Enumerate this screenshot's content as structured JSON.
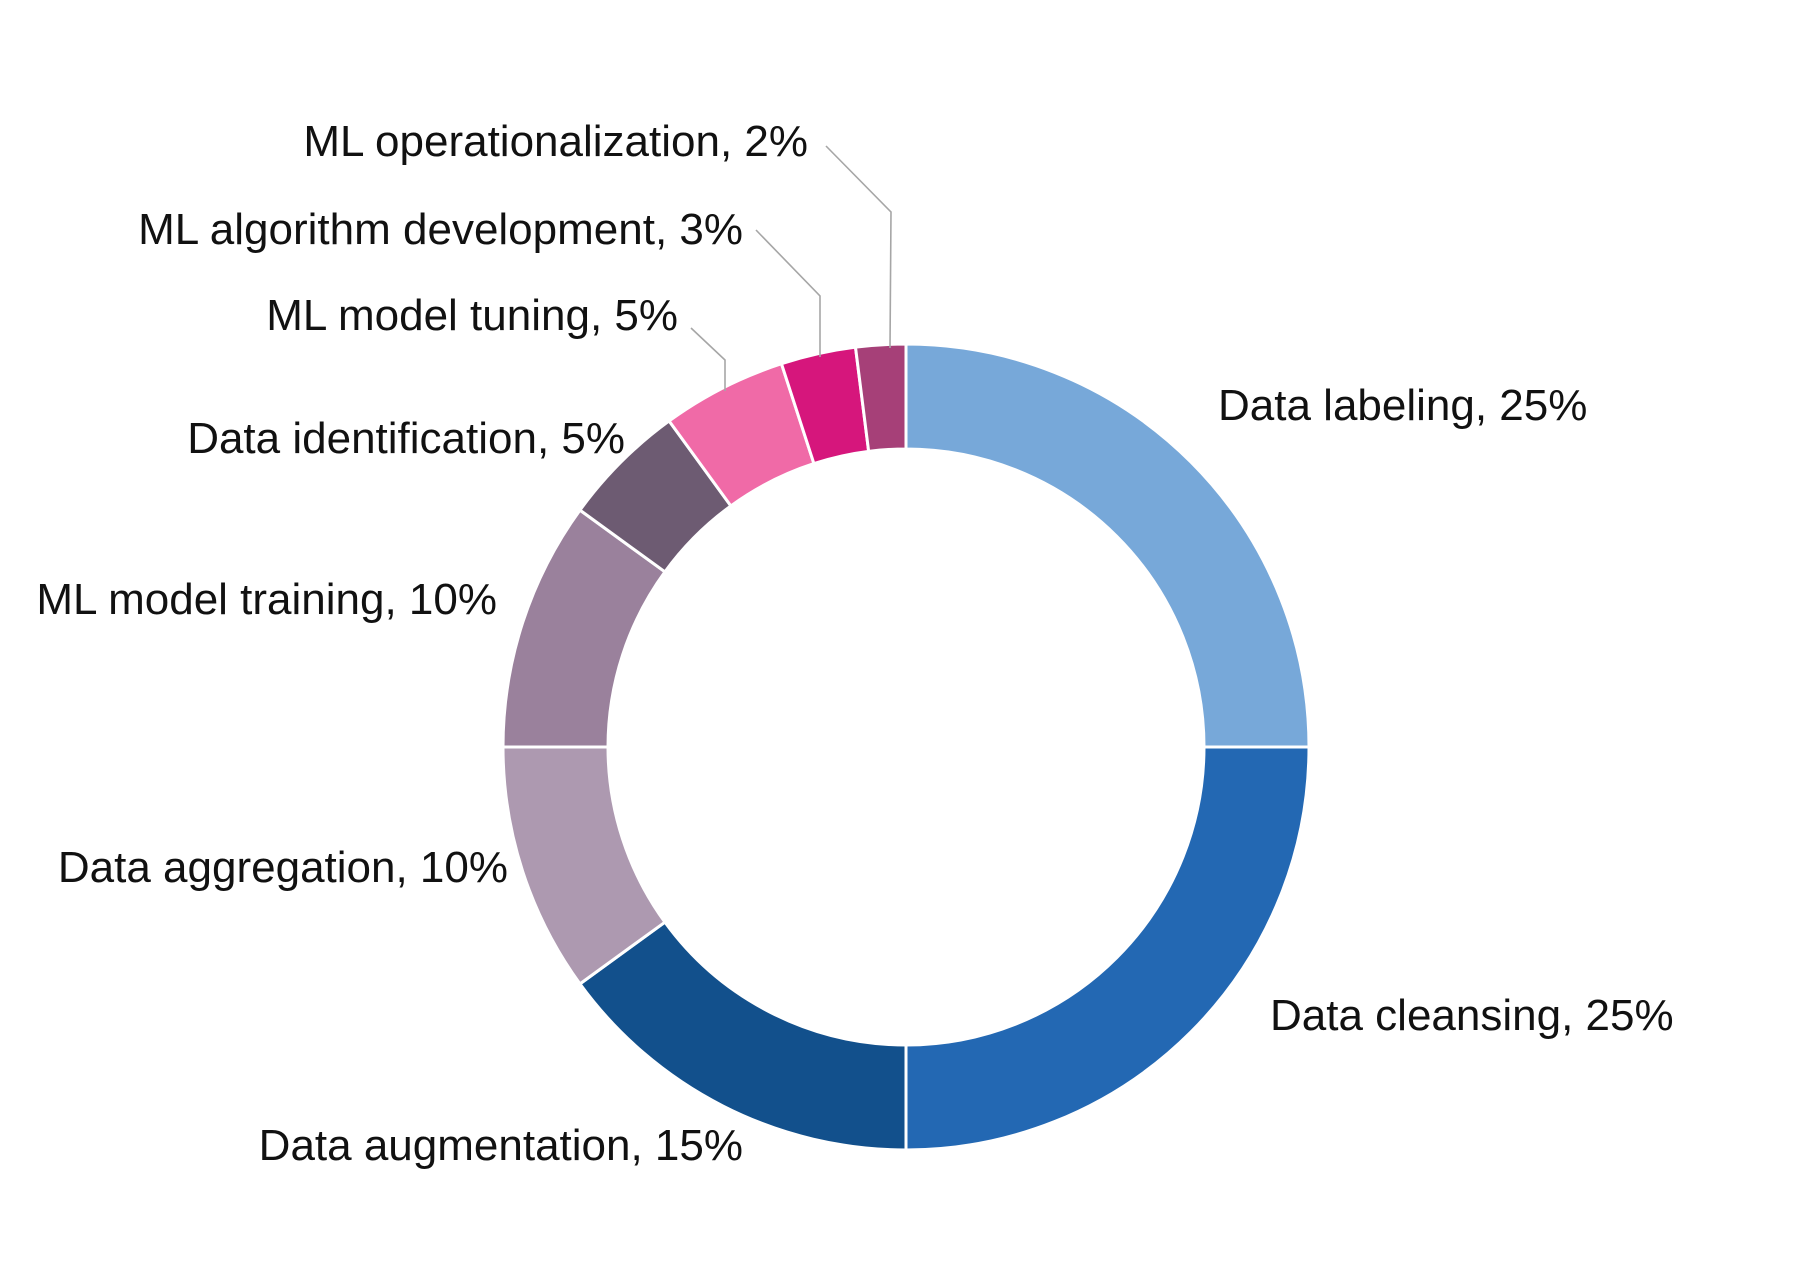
{
  "chart_data": {
    "type": "pie",
    "donut": true,
    "title": "",
    "categories": [
      "Data labeling",
      "Data cleansing",
      "Data augmentation",
      "Data aggregation",
      "ML model training",
      "Data identification",
      "ML model tuning",
      "ML algorithm development",
      "ML operationalization"
    ],
    "values": [
      25,
      25,
      15,
      10,
      10,
      5,
      5,
      3,
      2
    ],
    "data_labels": [
      "Data labeling, 25%",
      "Data cleansing, 25%",
      "Data augmentation, 15%",
      "Data aggregation, 10%",
      "ML model training, 10%",
      "Data identification, 5%",
      "ML model tuning, 5%",
      "ML algorithm development, 3%",
      "ML operationalization, 2%"
    ],
    "colors": [
      "#77a8d9",
      "#2368b3",
      "#12508c",
      "#ad99b0",
      "#9a819c",
      "#6d5b72",
      "#f06aa7",
      "#d6167c",
      "#a64078"
    ],
    "legend": "none",
    "label_placement": "outside"
  }
}
